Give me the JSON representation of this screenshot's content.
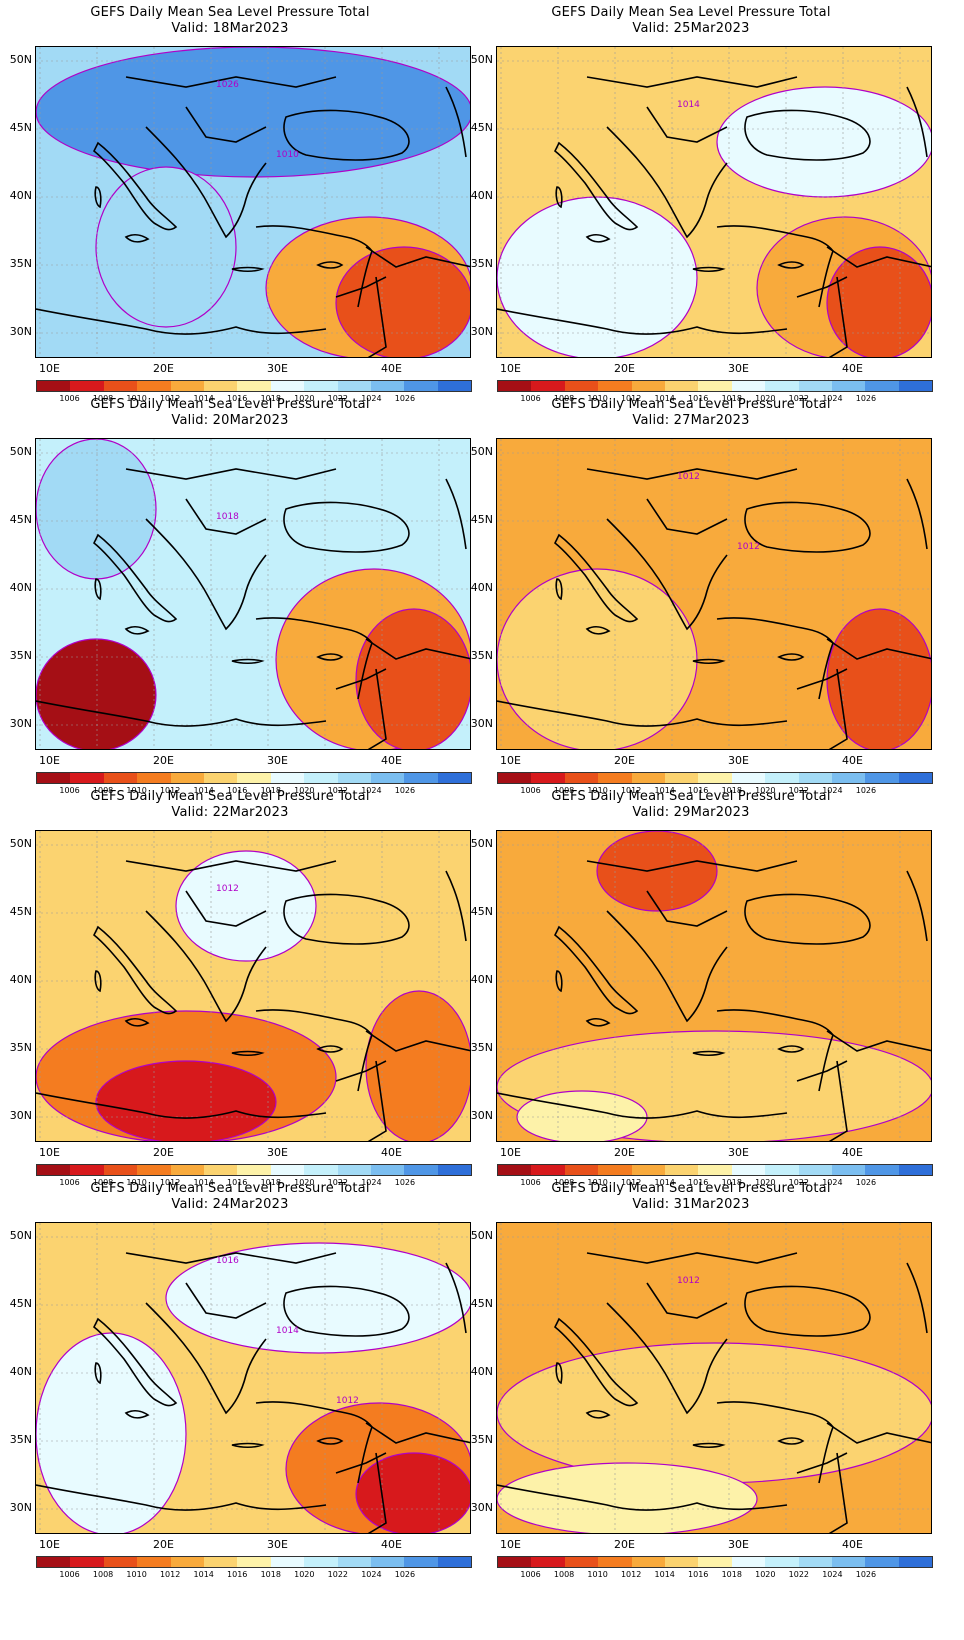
{
  "panels": [
    {
      "title": "GEFS Daily Mean Sea Level Pressure Total",
      "valid": "Valid:  18Mar2023",
      "contour_labels": [
        "1026",
        "1010"
      ],
      "theme": "high"
    },
    {
      "title": "GEFS Daily Mean Sea Level Pressure Total",
      "valid": "Valid:  25Mar2023",
      "contour_labels": [
        "1014"
      ],
      "theme": "mid"
    },
    {
      "title": "GEFS Daily Mean Sea Level Pressure Total",
      "valid": "Valid:  20Mar2023",
      "contour_labels": [
        "1018"
      ],
      "theme": "blue"
    },
    {
      "title": "GEFS Daily Mean Sea Level Pressure Total",
      "valid": "Valid:  27Mar2023",
      "contour_labels": [
        "1012",
        "1012"
      ],
      "theme": "orange"
    },
    {
      "title": "GEFS Daily Mean Sea Level Pressure Total",
      "valid": "Valid:  22Mar2023",
      "contour_labels": [
        "1012"
      ],
      "theme": "yellow"
    },
    {
      "title": "GEFS Daily Mean Sea Level Pressure Total",
      "valid": "Valid:  29Mar2023",
      "contour_labels": [],
      "theme": "orange2"
    },
    {
      "title": "GEFS Daily Mean Sea Level Pressure Total",
      "valid": "Valid:  24Mar2023",
      "contour_labels": [
        "1016",
        "1014",
        "1012"
      ],
      "theme": "mid2"
    },
    {
      "title": "GEFS Daily Mean Sea Level Pressure Total",
      "valid": "Valid:  31Mar2023",
      "contour_labels": [
        "1012"
      ],
      "theme": "orange3"
    }
  ],
  "axes": {
    "y_ticks": [
      "50N",
      "45N",
      "40N",
      "35N",
      "30N"
    ],
    "x_ticks": [
      "10E",
      "20E",
      "30E",
      "40E"
    ]
  },
  "colorbar": {
    "labels": [
      "1006",
      "1008",
      "1010",
      "1012",
      "1014",
      "1016",
      "1018",
      "1020",
      "1022",
      "1024",
      "1026"
    ],
    "colors": [
      "#a50f15",
      "#d7191c",
      "#e8501a",
      "#f47c20",
      "#f8aa3c",
      "#fbd370",
      "#fdf2a9",
      "#e8fbff",
      "#c4f0fb",
      "#a2daf5",
      "#7bbef0",
      "#4f96e6",
      "#2e6fd9"
    ]
  }
}
